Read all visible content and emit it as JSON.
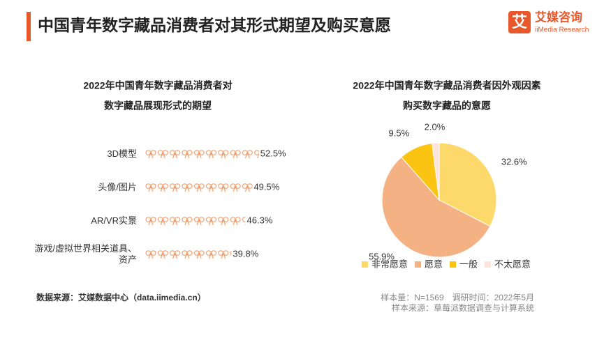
{
  "header": {
    "title": "中国青年数字藏品消费者对其形式期望及购买意愿",
    "logo_mark": "艾",
    "logo_name": "艾媒咨询",
    "logo_sub": "iiMedia Research"
  },
  "chart_data": [
    {
      "type": "pictorial-bar",
      "title": [
        "2022年中国青年数字藏品消费者对",
        "数字藏品展现形式的期望"
      ],
      "categories": [
        "3D模型",
        "头像/图片",
        "AR/VR实景",
        "游戏/虚拟世界相关道具、资产"
      ],
      "values": [
        52.5,
        49.5,
        46.3,
        39.8
      ],
      "value_labels": [
        "52.5%",
        "49.5%",
        "46.3%",
        "39.8%"
      ],
      "color": "#f0a070"
    },
    {
      "type": "pie",
      "title": [
        "2022年中国青年数字藏品消费者因外观因素",
        "购买数字藏品的意愿"
      ],
      "categories": [
        "非常愿意",
        "愿意",
        "一般",
        "不太愿意"
      ],
      "values": [
        32.6,
        55.9,
        9.5,
        2.0
      ],
      "value_labels": [
        "32.6%",
        "55.9%",
        "9.5%",
        "2.0%"
      ],
      "colors": [
        "#fdd96b",
        "#f4b184",
        "#fbc312",
        "#fde3dc"
      ]
    }
  ],
  "notes": {
    "source": "数据来源：艾媒数据中心（data.iimedia.cn）",
    "sample": "样本量：N=1569　调研时间：2022年5月",
    "sample_source": "样本来源：草莓派数据调查与计算系统"
  }
}
